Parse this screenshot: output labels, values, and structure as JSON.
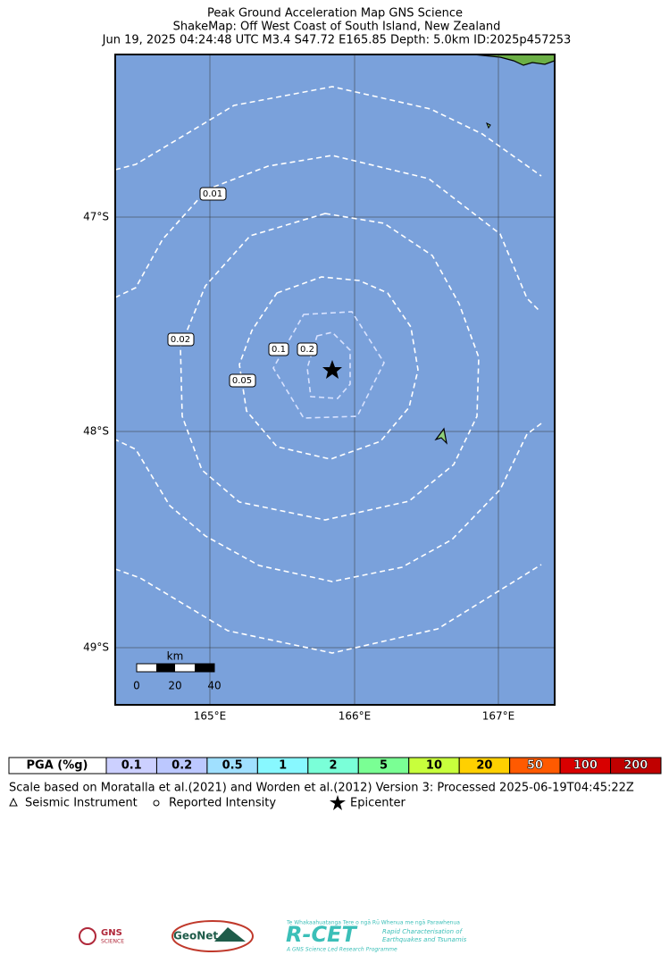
{
  "header": {
    "title": [
      "Peak Ground Acceleration Map GNS Science",
      "ShakeMap: Off West Coast of South Island, New Zealand",
      "Jun 19, 2025 04:24:48 UTC M3.4 S47.72 E165.85 Depth: 5.0km ID:2025p457253"
    ]
  },
  "map": {
    "lat_labels": [
      "47°S",
      "48°S",
      "49°S"
    ],
    "lon_labels": [
      "165°E",
      "166°E",
      "167°E"
    ],
    "contour_labels": [
      "0.01",
      "0.02",
      "0.05",
      "0.1",
      "0.2"
    ],
    "scale_bar": {
      "unit": "km",
      "ticks": [
        "0",
        "20",
        "40"
      ]
    }
  },
  "legend": {
    "header": "PGA (%g)",
    "items": [
      {
        "label": "0.1",
        "color": "#ccd0ff"
      },
      {
        "label": "0.2",
        "color": "#bcc8ff"
      },
      {
        "label": "0.5",
        "color": "#a0e0ff"
      },
      {
        "label": "1",
        "color": "#88f8ff"
      },
      {
        "label": "2",
        "color": "#7affd8"
      },
      {
        "label": "5",
        "color": "#7aff94"
      },
      {
        "label": "10",
        "color": "#c8ff3c"
      },
      {
        "label": "20",
        "color": "#ffd000"
      },
      {
        "label": "50",
        "color": "#ff5a00"
      },
      {
        "label": "100",
        "color": "#d80000"
      },
      {
        "label": "200",
        "color": "#c00000"
      }
    ]
  },
  "footer": {
    "lines": [
      "Scale based on Moratalla et al.(2021) and Worden et al.(2012)   Version 3: Processed 2025-06-19T04:45:22Z"
    ],
    "symbols": [
      "Seismic Instrument",
      "Reported Intensity",
      "Epicenter"
    ]
  },
  "logos": {
    "gns": "GNS",
    "gns_sub": "SCIENCE",
    "geonet": "GeoNet",
    "rcet": "R-CET",
    "rcet_top": "Te Whakaahuatanga Tere o ngā Rū Whenua me ngā Parawhenua",
    "rcet_sub1": "Rapid Characterisation of",
    "rcet_sub2": "Earthquakes and Tsunamis",
    "rcet_bottom": "A GNS Science Led Research Programme"
  }
}
